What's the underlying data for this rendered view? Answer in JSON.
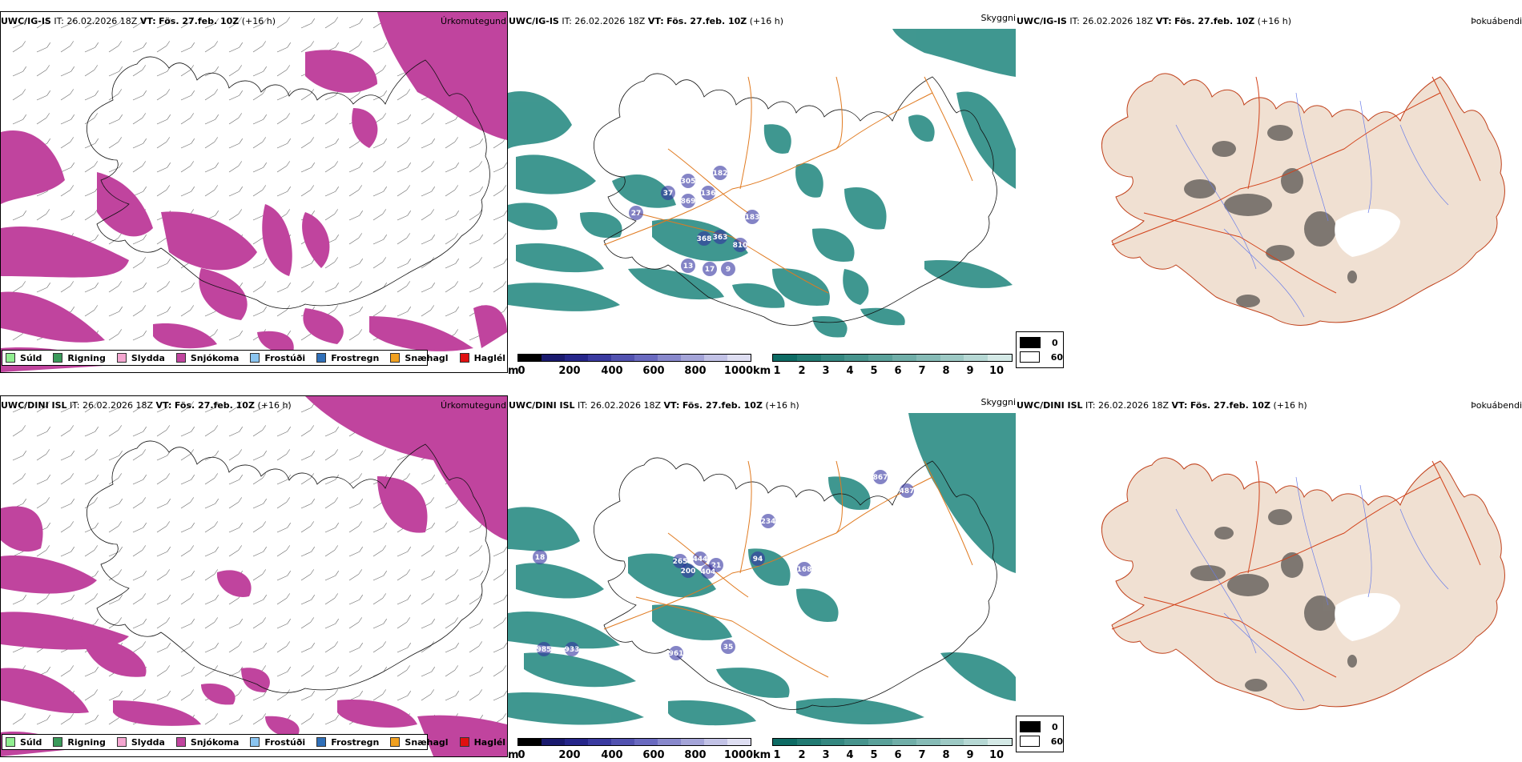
{
  "rows": [
    {
      "model": "UWC/IG-IS",
      "it_label": "IT:",
      "it_value": "26.02.2026 18Z",
      "vt_label": "VT:",
      "vt_value": "Fös. 27.feb. 10Z",
      "lead": "(+16 h)",
      "labels": {
        "precip": "Úrkomutegund",
        "visibility": "Skyggni",
        "fog": "Þokuábendi"
      },
      "cloud_base_labels": [
        "305",
        "182",
        "37",
        "869",
        "136",
        "183",
        "363",
        "27",
        "368",
        "810",
        "17",
        "13",
        "9"
      ]
    },
    {
      "model": "UWC/DINI ISL",
      "it_label": "IT:",
      "it_value": "26.02.2026 18Z",
      "vt_label": "VT:",
      "vt_value": "Fös. 27.feb. 10Z",
      "lead": "(+16 h)",
      "labels": {
        "precip": "Úrkomutegund",
        "visibility": "Skyggni",
        "fog": "Þokuábendi"
      },
      "cloud_base_labels": [
        "867",
        "487",
        "234",
        "94",
        "265",
        "444",
        "21",
        "168",
        "200",
        "404",
        "985",
        "933",
        "961",
        "18",
        "35"
      ]
    }
  ],
  "precip_legend": [
    {
      "label": "Súld",
      "color": "#90ee90"
    },
    {
      "label": "Rigning",
      "color": "#3a9a5a"
    },
    {
      "label": "Slydda",
      "color": "#f4a6d0"
    },
    {
      "label": "Snjókoma",
      "color": "#c0449e"
    },
    {
      "label": "Frostúði",
      "color": "#8ac4f0"
    },
    {
      "label": "Frostregn",
      "color": "#2f6fb8"
    },
    {
      "label": "Snæhagl",
      "color": "#f0a020"
    },
    {
      "label": "Haglél",
      "color": "#e01010"
    }
  ],
  "cloud_bar": {
    "unit": "m",
    "ticks": [
      "0",
      "200",
      "400",
      "600",
      "800",
      "1000"
    ],
    "colors": [
      "#000000",
      "#1a1a6e",
      "#26268a",
      "#3a3aa0",
      "#5252b0",
      "#6a6ac0",
      "#8888cc",
      "#a4a4d8",
      "#c2c2e6",
      "#dedef2"
    ]
  },
  "vis_bar": {
    "unit": "km",
    "ticks": [
      "1",
      "2",
      "3",
      "4",
      "5",
      "6",
      "7",
      "8",
      "9",
      "10"
    ],
    "colors": [
      "#0d6b64",
      "#217a72",
      "#348780",
      "#47948d",
      "#5aa19a",
      "#70aea8",
      "#86bbb6",
      "#9dc9c4",
      "#b6d8d4",
      "#d4e9e6"
    ]
  },
  "fog_legend": {
    "rows": [
      {
        "label": "0",
        "color": "#000000"
      },
      {
        "label": "60",
        "color": "#ffffff"
      }
    ]
  },
  "colors": {
    "snow": "#c0449e",
    "vis": "#2b8c84",
    "roads": "#e07a20",
    "land_fog": "#f0e0d2",
    "rivers": "#6a7de8",
    "cloud_base": "#3232a0"
  }
}
